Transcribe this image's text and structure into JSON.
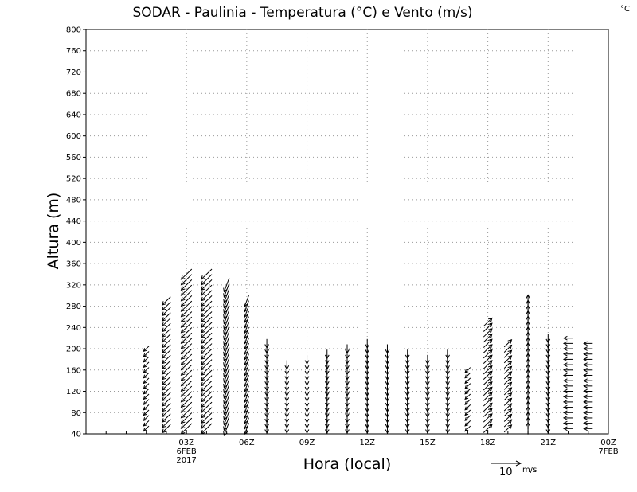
{
  "chart_data": {
    "type": "vector-field",
    "title": "SODAR - Paulinia - Temperatura (°C) e Vento (m/s)",
    "corner_unit": "°C",
    "xlabel": "Hora (local)",
    "ylabel": "Altura (m)",
    "xlim_hours": [
      -2,
      24
    ],
    "ylim": [
      40,
      800
    ],
    "y_ticks": [
      40,
      80,
      120,
      160,
      200,
      240,
      280,
      320,
      360,
      400,
      440,
      480,
      520,
      560,
      600,
      640,
      680,
      720,
      760,
      800
    ],
    "x_ticks": [
      {
        "hour": 3,
        "label": "03Z",
        "date": "6FEB",
        "year": "2017"
      },
      {
        "hour": 6,
        "label": "06Z",
        "date": "",
        "year": ""
      },
      {
        "hour": 9,
        "label": "09Z",
        "date": "",
        "year": ""
      },
      {
        "hour": 12,
        "label": "12Z",
        "date": "",
        "year": ""
      },
      {
        "hour": 15,
        "label": "15Z",
        "date": "",
        "year": ""
      },
      {
        "hour": 18,
        "label": "18Z",
        "date": "",
        "year": ""
      },
      {
        "hour": 21,
        "label": "21Z",
        "date": "",
        "year": ""
      },
      {
        "hour": 24,
        "label": "00Z",
        "date": "7FEB",
        "year": ""
      }
    ],
    "grid": true,
    "grid_style": "dotted",
    "reference_vector": {
      "magnitude": 10,
      "label": "10",
      "unit": "m/s"
    },
    "wind_profiles": [
      {
        "hour": 1,
        "hmax": 200,
        "dir": "sw",
        "speed": 2.5
      },
      {
        "hour": 2,
        "hmax": 290,
        "dir": "sw",
        "speed": 4
      },
      {
        "hour": 3,
        "hmax": 340,
        "dir": "sw",
        "speed": 5
      },
      {
        "hour": 4,
        "hmax": 340,
        "dir": "sw",
        "speed": 5
      },
      {
        "hour": 5,
        "hmax": 320,
        "dir": "ssw",
        "speed": 5
      },
      {
        "hour": 6,
        "hmax": 290,
        "dir": "ssw",
        "speed": 4
      },
      {
        "hour": 7,
        "hmax": 210,
        "dir": "s",
        "speed": 3
      },
      {
        "hour": 8,
        "hmax": 170,
        "dir": "s",
        "speed": 3
      },
      {
        "hour": 9,
        "hmax": 180,
        "dir": "s",
        "speed": 3
      },
      {
        "hour": 10,
        "hmax": 190,
        "dir": "s",
        "speed": 3
      },
      {
        "hour": 11,
        "hmax": 200,
        "dir": "s",
        "speed": 3
      },
      {
        "hour": 12,
        "hmax": 210,
        "dir": "s",
        "speed": 3
      },
      {
        "hour": 13,
        "hmax": 200,
        "dir": "s",
        "speed": 3
      },
      {
        "hour": 14,
        "hmax": 190,
        "dir": "s",
        "speed": 3
      },
      {
        "hour": 15,
        "hmax": 180,
        "dir": "s",
        "speed": 3
      },
      {
        "hour": 16,
        "hmax": 190,
        "dir": "s",
        "speed": 3
      },
      {
        "hour": 17,
        "hmax": 160,
        "dir": "sw",
        "speed": 2.5
      },
      {
        "hour": 18,
        "hmax": 250,
        "dir": "ne",
        "speed": 4
      },
      {
        "hour": 19,
        "hmax": 210,
        "dir": "ne",
        "speed": 3.5
      },
      {
        "hour": 20,
        "hmax": 290,
        "dir": "n",
        "speed": 4
      },
      {
        "hour": 21,
        "hmax": 220,
        "dir": "s",
        "speed": 3
      },
      {
        "hour": 22,
        "hmax": 220,
        "dir": "w",
        "speed": 3
      },
      {
        "hour": 23,
        "hmax": 210,
        "dir": "w",
        "speed": 3
      }
    ]
  }
}
